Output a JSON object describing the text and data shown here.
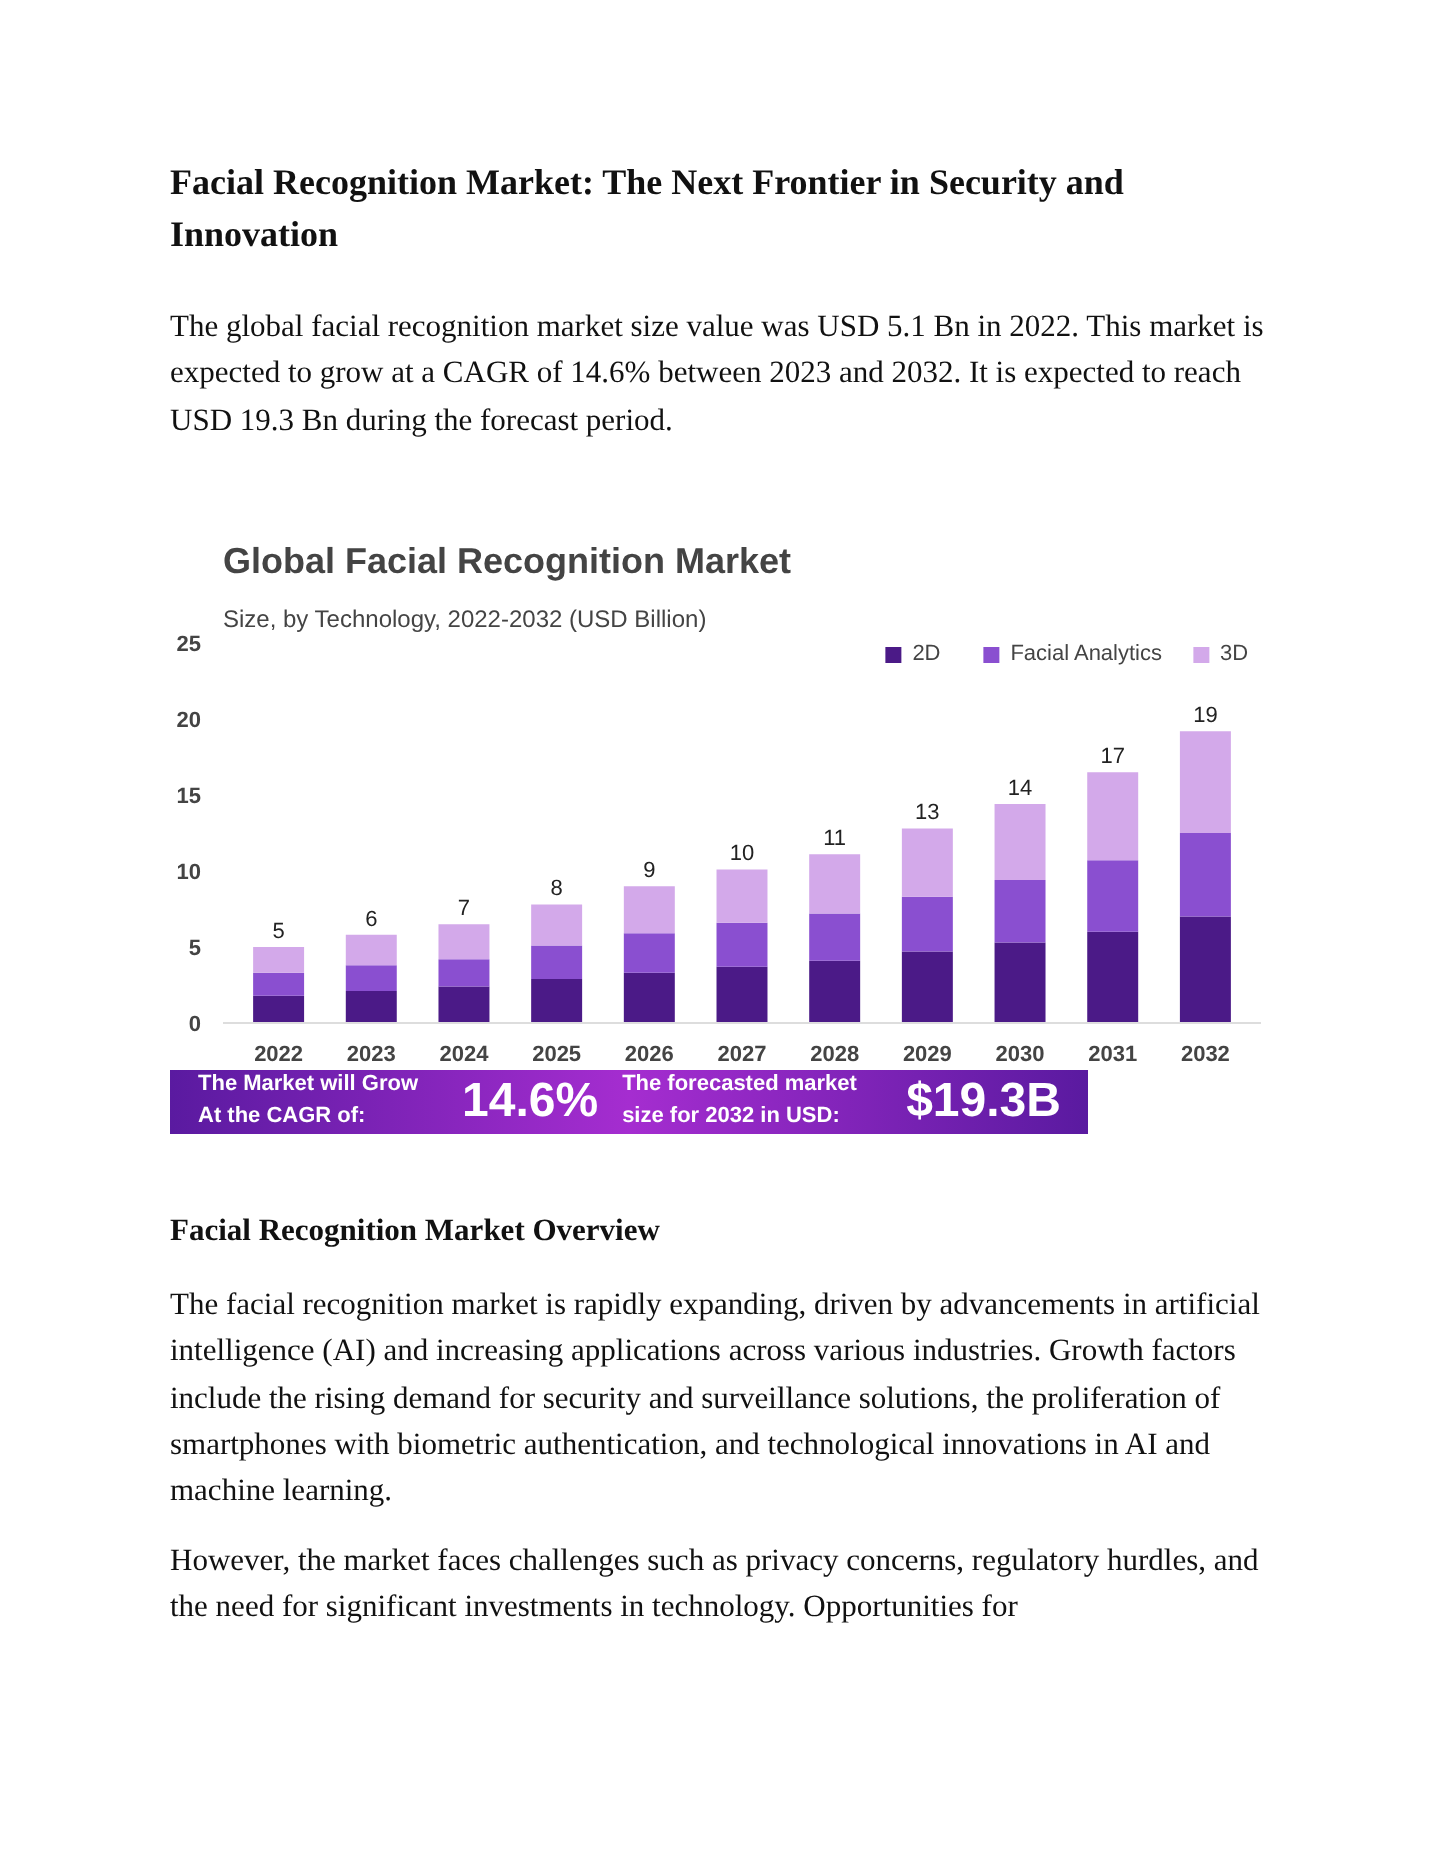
{
  "chart_data": {
    "type": "bar",
    "title": "Global Facial Recognition Market",
    "subtitle": "Size, by Technology, 2022-2032 (USD Billion)",
    "categories": [
      "2022",
      "2023",
      "2024",
      "2025",
      "2026",
      "2027",
      "2028",
      "2029",
      "2030",
      "2031",
      "2032"
    ],
    "series": [
      {
        "name": "2D",
        "color": "#4b1a87",
        "values": [
          1.8,
          2.1,
          2.4,
          2.9,
          3.3,
          3.7,
          4.1,
          4.7,
          5.3,
          6.0,
          7.0
        ]
      },
      {
        "name": "Facial Analytics",
        "color": "#8a4fd0",
        "values": [
          1.5,
          1.7,
          1.8,
          2.2,
          2.6,
          2.9,
          3.1,
          3.6,
          4.1,
          4.7,
          5.5
        ]
      },
      {
        "name": "3D",
        "color": "#d3a9ea",
        "values": [
          1.7,
          2.0,
          2.3,
          2.7,
          3.1,
          3.5,
          3.9,
          4.5,
          5.0,
          5.8,
          6.7
        ]
      }
    ],
    "stacked": true,
    "ylim": [
      0,
      25
    ],
    "yticks": [
      0,
      5,
      10,
      15,
      20,
      25
    ],
    "totals": [
      "5",
      "6",
      "7",
      "8",
      "9",
      "10",
      "11",
      "13",
      "14",
      "17",
      "19"
    ],
    "legend": "top right",
    "annotations": [
      "Facial Recognition Market: The Next Frontier in Security and Innovation",
      "The global facial recognition market size value was USD 5.1 Bn in 2022. This market is expected to grow at a CAGR of 14.6% between 2023 and 2032. It is expected to reach USD 19.3 Bn during the forecast period.",
      "The Market will Grow At the CAGR of:",
      "14.6%",
      "The forecasted market size for 2032 in USD:",
      "$19.3B",
      "Facial Recognition Market Overview",
      "The facial recognition market is rapidly expanding, driven by advancements in artificial intelligence (AI) and increasing applications across various industries. Growth factors include the rising demand for security and surveillance solutions, the proliferation of smartphones with biometric authentication, and technological innovations in AI and machine learning.",
      "However, the market faces challenges such as privacy concerns, regulatory hurdles, and the need for significant investments in technology. Opportunities for"
    ]
  }
}
